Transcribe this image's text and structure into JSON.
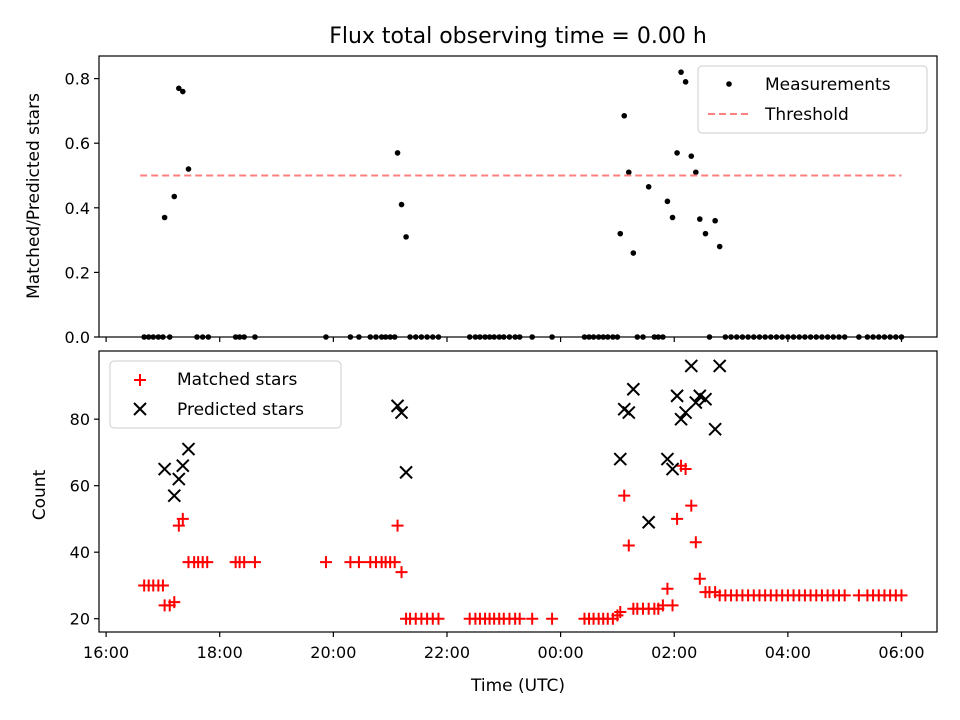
{
  "chart_data": [
    {
      "type": "scatter",
      "title": "Flux total observing time = 0.00 h",
      "xlabel": "",
      "ylabel": "Matched/Predicted stars",
      "xlim": [
        15.875,
        30.625
      ],
      "ylim": [
        0.0,
        0.87
      ],
      "yticks": [
        0.0,
        0.2,
        0.4,
        0.6,
        0.8
      ],
      "ytick_labels": [
        "0.0",
        "0.2",
        "0.4",
        "0.6",
        "0.8"
      ],
      "legend": "top-right",
      "series": [
        {
          "name": "Measurements",
          "marker": "dot",
          "color": "#000000",
          "points": [
            [
              16.67,
              0
            ],
            [
              16.75,
              0
            ],
            [
              16.83,
              0
            ],
            [
              16.92,
              0
            ],
            [
              17.0,
              0
            ],
            [
              17.03,
              0.37
            ],
            [
              17.12,
              0
            ],
            [
              17.2,
              0.435
            ],
            [
              17.28,
              0.77
            ],
            [
              17.35,
              0.76
            ],
            [
              17.45,
              0.52
            ],
            [
              17.6,
              0
            ],
            [
              17.7,
              0
            ],
            [
              17.8,
              0
            ],
            [
              18.28,
              0
            ],
            [
              18.35,
              0
            ],
            [
              18.43,
              0
            ],
            [
              18.62,
              0
            ],
            [
              19.87,
              0
            ],
            [
              20.3,
              0
            ],
            [
              20.45,
              0
            ],
            [
              20.65,
              0
            ],
            [
              20.75,
              0
            ],
            [
              20.85,
              0
            ],
            [
              20.92,
              0
            ],
            [
              21.0,
              0
            ],
            [
              21.08,
              0
            ],
            [
              21.13,
              0.57
            ],
            [
              21.2,
              0.41
            ],
            [
              21.28,
              0.31
            ],
            [
              21.35,
              0
            ],
            [
              21.45,
              0
            ],
            [
              21.55,
              0
            ],
            [
              21.65,
              0
            ],
            [
              21.75,
              0
            ],
            [
              21.85,
              0
            ],
            [
              22.4,
              0
            ],
            [
              22.5,
              0
            ],
            [
              22.58,
              0
            ],
            [
              22.67,
              0
            ],
            [
              22.75,
              0
            ],
            [
              22.83,
              0
            ],
            [
              22.92,
              0
            ],
            [
              23.0,
              0
            ],
            [
              23.1,
              0
            ],
            [
              23.2,
              0
            ],
            [
              23.28,
              0
            ],
            [
              23.5,
              0
            ],
            [
              23.85,
              0
            ],
            [
              24.42,
              0
            ],
            [
              24.5,
              0
            ],
            [
              24.58,
              0
            ],
            [
              24.67,
              0
            ],
            [
              24.75,
              0
            ],
            [
              24.83,
              0
            ],
            [
              24.92,
              0
            ],
            [
              25.0,
              0
            ],
            [
              25.05,
              0.32
            ],
            [
              25.12,
              0.685
            ],
            [
              25.2,
              0.51
            ],
            [
              25.28,
              0.26
            ],
            [
              25.35,
              0
            ],
            [
              25.45,
              0
            ],
            [
              25.55,
              0.465
            ],
            [
              25.65,
              0
            ],
            [
              25.72,
              0
            ],
            [
              25.8,
              0
            ],
            [
              25.88,
              0.42
            ],
            [
              25.97,
              0.37
            ],
            [
              26.05,
              0.57
            ],
            [
              26.12,
              0.82
            ],
            [
              26.2,
              0.79
            ],
            [
              26.3,
              0.56
            ],
            [
              26.38,
              0.51
            ],
            [
              26.45,
              0.365
            ],
            [
              26.55,
              0.32
            ],
            [
              26.62,
              0
            ],
            [
              26.72,
              0.36
            ],
            [
              26.8,
              0.28
            ],
            [
              26.9,
              0
            ],
            [
              27.0,
              0
            ],
            [
              27.1,
              0
            ],
            [
              27.2,
              0
            ],
            [
              27.3,
              0
            ],
            [
              27.4,
              0
            ],
            [
              27.5,
              0
            ],
            [
              27.6,
              0
            ],
            [
              27.7,
              0
            ],
            [
              27.8,
              0
            ],
            [
              27.9,
              0
            ],
            [
              28.0,
              0
            ],
            [
              28.1,
              0
            ],
            [
              28.2,
              0
            ],
            [
              28.3,
              0
            ],
            [
              28.4,
              0
            ],
            [
              28.5,
              0
            ],
            [
              28.6,
              0
            ],
            [
              28.7,
              0
            ],
            [
              28.8,
              0
            ],
            [
              28.9,
              0
            ],
            [
              29.0,
              0
            ],
            [
              29.25,
              0
            ],
            [
              29.4,
              0
            ],
            [
              29.5,
              0
            ],
            [
              29.6,
              0
            ],
            [
              29.7,
              0
            ],
            [
              29.8,
              0
            ],
            [
              29.9,
              0
            ],
            [
              30.0,
              0
            ]
          ]
        },
        {
          "name": "Threshold",
          "type": "line",
          "style": "dashed",
          "color": "#ff7f7f",
          "x": [
            16.6,
            30.0
          ],
          "y": [
            0.5,
            0.5
          ]
        }
      ]
    },
    {
      "type": "scatter",
      "title": "",
      "xlabel": "Time (UTC)",
      "ylabel": "Count",
      "xlim": [
        15.875,
        30.625
      ],
      "ylim": [
        16.0,
        100.5
      ],
      "xticks": [
        16,
        18,
        20,
        22,
        24,
        26,
        28,
        30
      ],
      "xtick_labels": [
        "16:00",
        "18:00",
        "20:00",
        "22:00",
        "00:00",
        "02:00",
        "04:00",
        "06:00"
      ],
      "yticks": [
        20,
        40,
        60,
        80
      ],
      "ytick_labels": [
        "20",
        "40",
        "60",
        "80"
      ],
      "legend": "top-left",
      "series": [
        {
          "name": "Matched stars",
          "marker": "plus",
          "color": "#ff0000",
          "points": [
            [
              16.67,
              30
            ],
            [
              16.75,
              30
            ],
            [
              16.83,
              30
            ],
            [
              16.92,
              30
            ],
            [
              17.0,
              30
            ],
            [
              17.03,
              24
            ],
            [
              17.12,
              24
            ],
            [
              17.2,
              25
            ],
            [
              17.28,
              48
            ],
            [
              17.35,
              50
            ],
            [
              17.45,
              37
            ],
            [
              17.55,
              37
            ],
            [
              17.62,
              37
            ],
            [
              17.7,
              37
            ],
            [
              17.78,
              37
            ],
            [
              18.28,
              37
            ],
            [
              18.35,
              37
            ],
            [
              18.43,
              37
            ],
            [
              18.62,
              37
            ],
            [
              19.87,
              37
            ],
            [
              20.3,
              37
            ],
            [
              20.45,
              37
            ],
            [
              20.65,
              37
            ],
            [
              20.75,
              37
            ],
            [
              20.85,
              37
            ],
            [
              20.92,
              37
            ],
            [
              21.0,
              37
            ],
            [
              21.08,
              37
            ],
            [
              21.13,
              48
            ],
            [
              21.2,
              34
            ],
            [
              21.28,
              20
            ],
            [
              21.35,
              20
            ],
            [
              21.45,
              20
            ],
            [
              21.55,
              20
            ],
            [
              21.65,
              20
            ],
            [
              21.75,
              20
            ],
            [
              21.85,
              20
            ],
            [
              22.4,
              20
            ],
            [
              22.5,
              20
            ],
            [
              22.58,
              20
            ],
            [
              22.67,
              20
            ],
            [
              22.75,
              20
            ],
            [
              22.83,
              20
            ],
            [
              22.92,
              20
            ],
            [
              23.0,
              20
            ],
            [
              23.1,
              20
            ],
            [
              23.2,
              20
            ],
            [
              23.28,
              20
            ],
            [
              23.5,
              20
            ],
            [
              23.85,
              20
            ],
            [
              24.42,
              20
            ],
            [
              24.5,
              20
            ],
            [
              24.58,
              20
            ],
            [
              24.67,
              20
            ],
            [
              24.75,
              20
            ],
            [
              24.83,
              20
            ],
            [
              24.92,
              20
            ],
            [
              25.0,
              21
            ],
            [
              25.05,
              22
            ],
            [
              25.12,
              57
            ],
            [
              25.2,
              42
            ],
            [
              25.28,
              23
            ],
            [
              25.35,
              23
            ],
            [
              25.45,
              23
            ],
            [
              25.55,
              23
            ],
            [
              25.65,
              23
            ],
            [
              25.72,
              23
            ],
            [
              25.8,
              24
            ],
            [
              25.88,
              29
            ],
            [
              25.97,
              24
            ],
            [
              26.05,
              50
            ],
            [
              26.12,
              66
            ],
            [
              26.2,
              65
            ],
            [
              26.3,
              54
            ],
            [
              26.38,
              43
            ],
            [
              26.45,
              32
            ],
            [
              26.55,
              28
            ],
            [
              26.62,
              28
            ],
            [
              26.72,
              28
            ],
            [
              26.8,
              27
            ],
            [
              26.9,
              27
            ],
            [
              27.0,
              27
            ],
            [
              27.1,
              27
            ],
            [
              27.2,
              27
            ],
            [
              27.3,
              27
            ],
            [
              27.4,
              27
            ],
            [
              27.5,
              27
            ],
            [
              27.6,
              27
            ],
            [
              27.7,
              27
            ],
            [
              27.8,
              27
            ],
            [
              27.9,
              27
            ],
            [
              28.0,
              27
            ],
            [
              28.1,
              27
            ],
            [
              28.2,
              27
            ],
            [
              28.3,
              27
            ],
            [
              28.4,
              27
            ],
            [
              28.5,
              27
            ],
            [
              28.6,
              27
            ],
            [
              28.7,
              27
            ],
            [
              28.8,
              27
            ],
            [
              28.9,
              27
            ],
            [
              29.0,
              27
            ],
            [
              29.25,
              27
            ],
            [
              29.4,
              27
            ],
            [
              29.5,
              27
            ],
            [
              29.6,
              27
            ],
            [
              29.7,
              27
            ],
            [
              29.8,
              27
            ],
            [
              29.9,
              27
            ],
            [
              30.0,
              27
            ]
          ]
        },
        {
          "name": "Predicted stars",
          "marker": "x",
          "color": "#000000",
          "points": [
            [
              17.03,
              65
            ],
            [
              17.2,
              57
            ],
            [
              17.28,
              62
            ],
            [
              17.35,
              66
            ],
            [
              17.45,
              71
            ],
            [
              21.13,
              84
            ],
            [
              21.2,
              82
            ],
            [
              21.28,
              64
            ],
            [
              25.05,
              68
            ],
            [
              25.12,
              83
            ],
            [
              25.2,
              82
            ],
            [
              25.28,
              89
            ],
            [
              25.55,
              49
            ],
            [
              25.88,
              68
            ],
            [
              25.97,
              65
            ],
            [
              26.05,
              87
            ],
            [
              26.12,
              80
            ],
            [
              26.2,
              82
            ],
            [
              26.3,
              96
            ],
            [
              26.38,
              85
            ],
            [
              26.45,
              87
            ],
            [
              26.55,
              86
            ],
            [
              26.72,
              77
            ],
            [
              26.8,
              96
            ]
          ]
        }
      ]
    }
  ]
}
